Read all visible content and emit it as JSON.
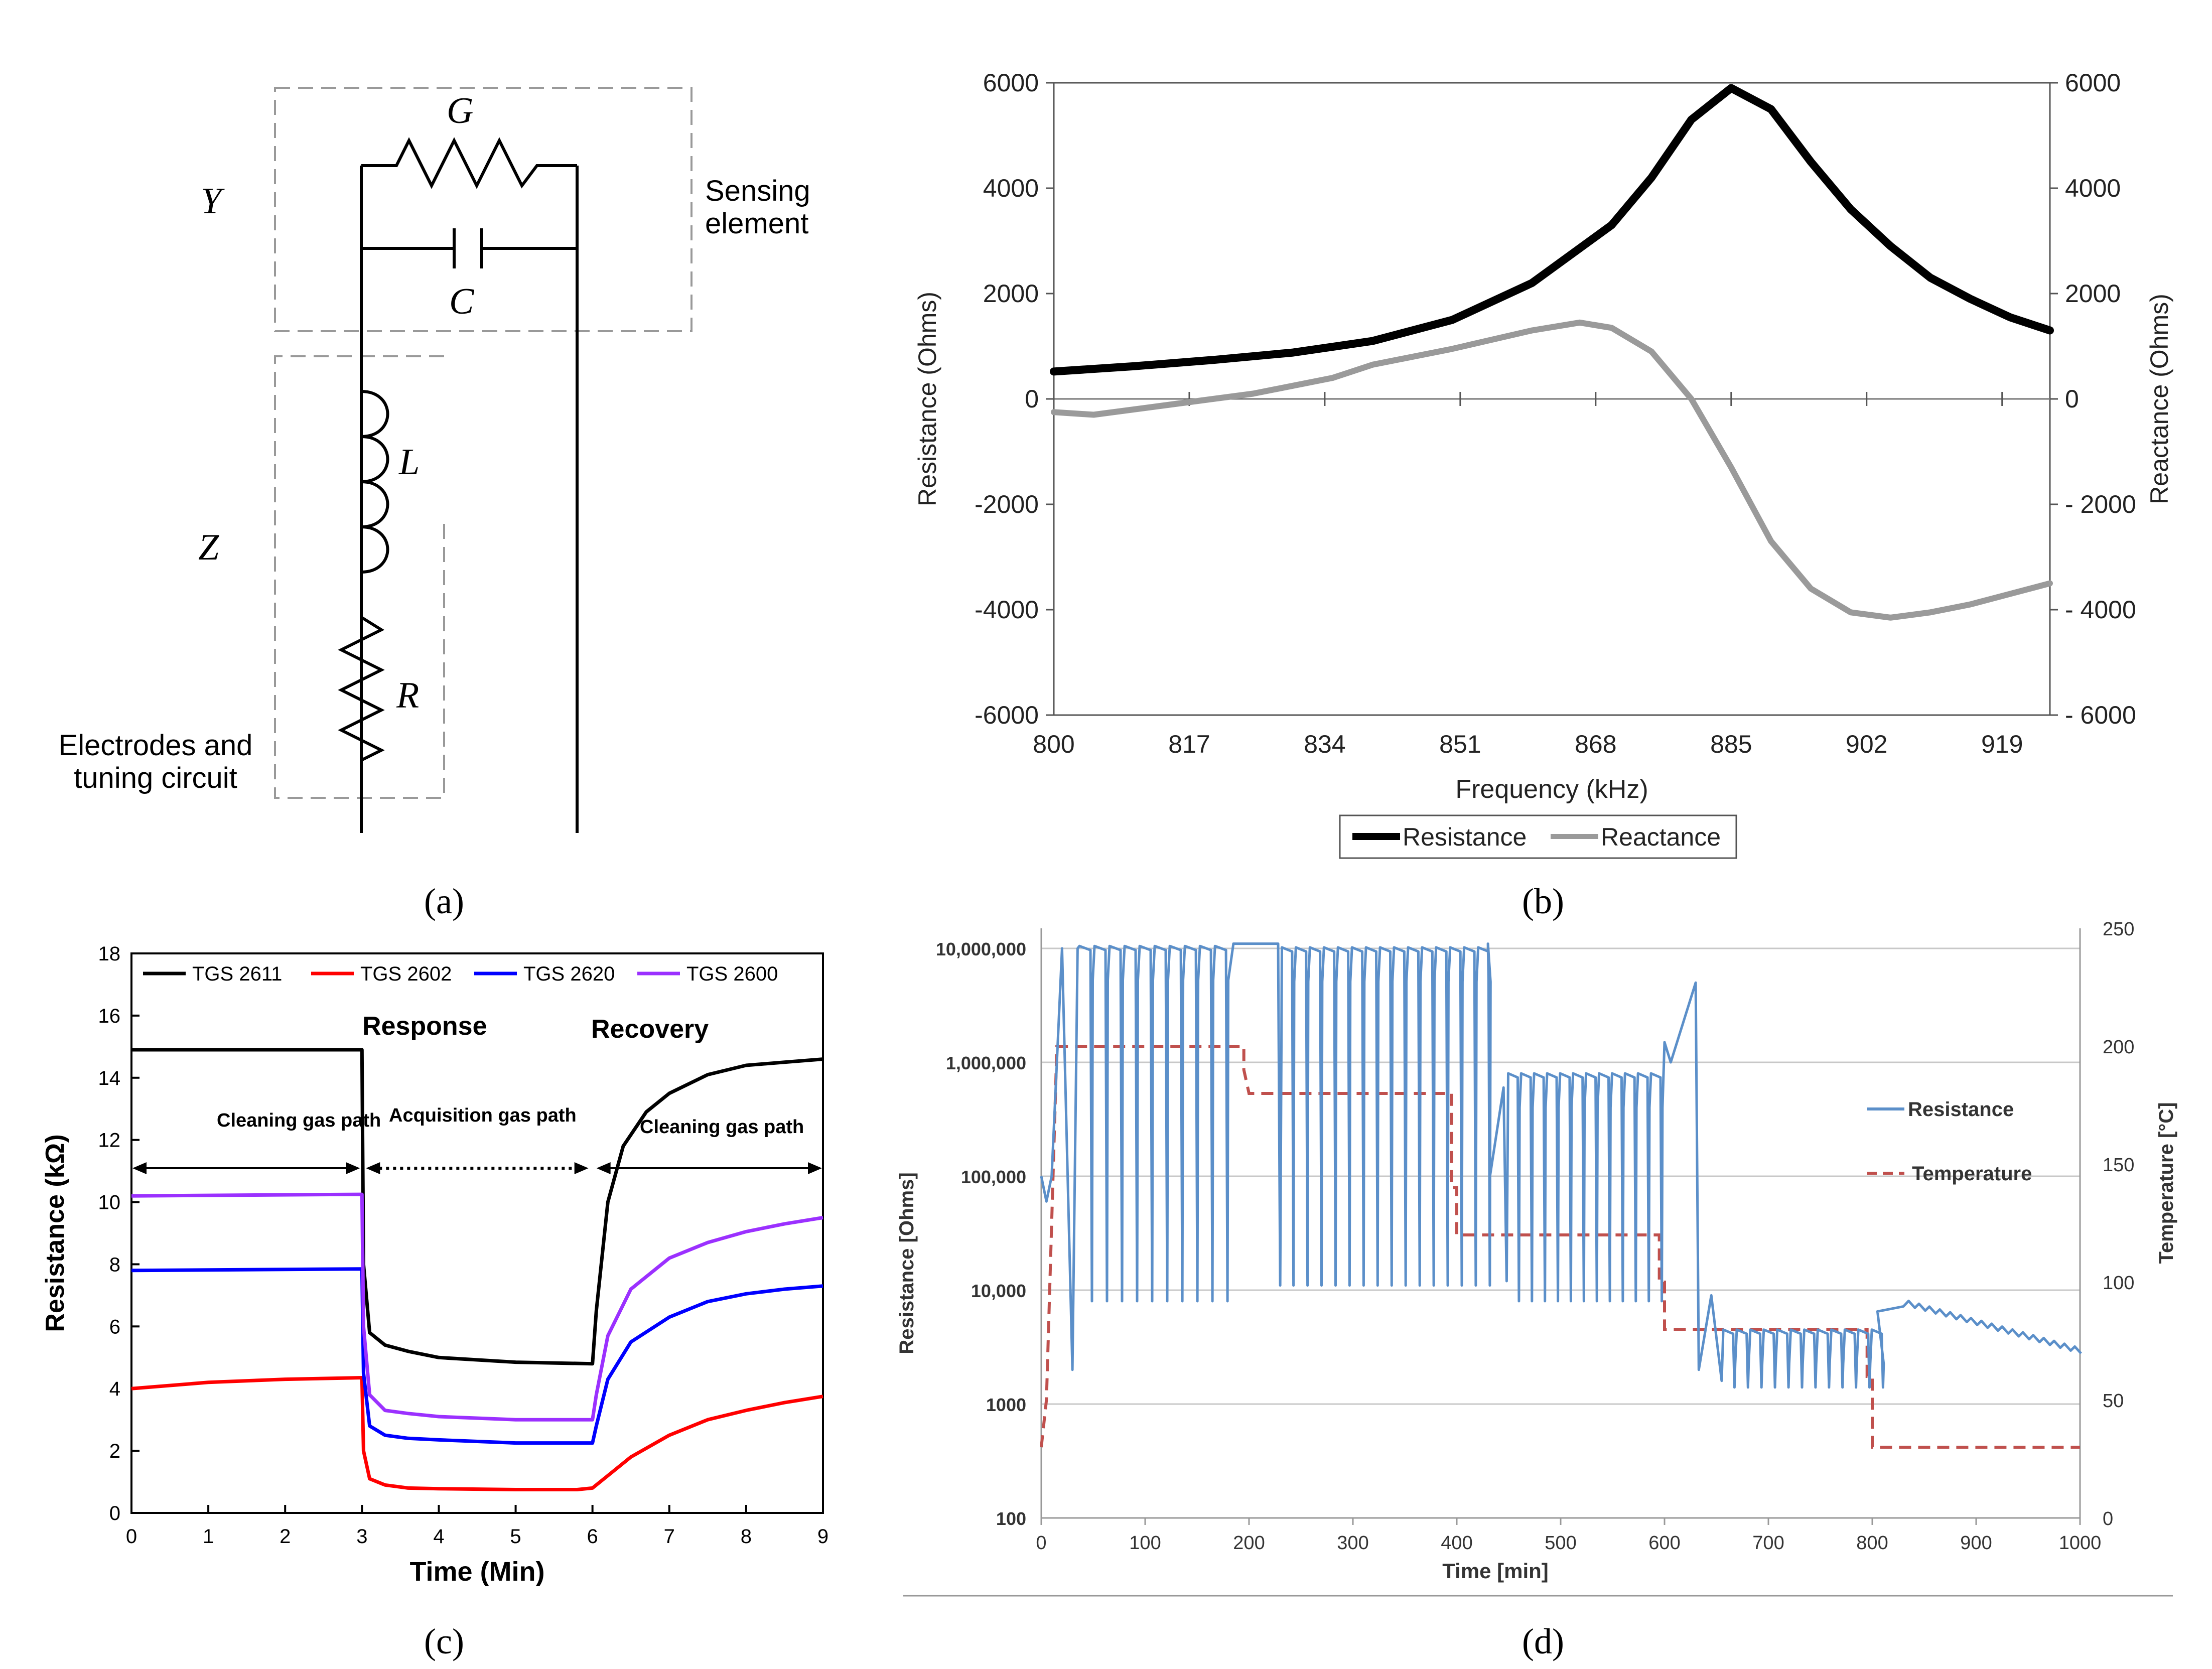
{
  "panel_labels": {
    "a": "(a)",
    "b": "(b)",
    "c": "(c)",
    "d": "(d)"
  },
  "colors": {
    "resistance_b": "#000000",
    "reactance_b": "#9a9a9a",
    "tgs2611": "#000000",
    "tgs2602": "#ff0000",
    "tgs2620": "#0000ff",
    "tgs2600": "#9b30ff",
    "resistance_d": "#5b8fc9",
    "temperature_d": "#c0504d"
  },
  "circuit": {
    "labels": {
      "G": "G",
      "C": "C",
      "L": "L",
      "R": "R",
      "Y": "Y",
      "Z": "Z",
      "sensing_line1": "Sensing",
      "sensing_line2": "element",
      "electrodes_line1": "Electrodes and",
      "electrodes_line2": "tuning circuit"
    }
  },
  "chart_data": [
    {
      "panel": "b",
      "type": "line",
      "xlabel": "Frequency (kHz)",
      "ylabel": "Resistance (Ohms)",
      "y2label": "Reactance (Ohms)",
      "x_ticks": [
        800,
        817,
        834,
        851,
        868,
        885,
        902,
        919
      ],
      "y_ticks": [
        "6000",
        "4000",
        "2000",
        "0",
        "-2000",
        "-4000",
        "-6000"
      ],
      "y2_ticks": [
        "6000",
        "4000",
        "2000",
        "0",
        "- 2000",
        "- 4000",
        "- 6000"
      ],
      "xlim": [
        800,
        925
      ],
      "ylim": [
        -6000,
        6000
      ],
      "legend": [
        "Resistance",
        "Reactance"
      ],
      "legend_position": "bottom-center",
      "series": [
        {
          "name": "Resistance",
          "x": [
            800,
            810,
            820,
            830,
            840,
            850,
            860,
            870,
            875,
            880,
            885,
            890,
            895,
            900,
            905,
            910,
            915,
            920,
            925
          ],
          "y": [
            520,
            620,
            740,
            880,
            1100,
            1500,
            2200,
            3300,
            4200,
            5300,
            5900,
            5500,
            4500,
            3600,
            2900,
            2300,
            1900,
            1550,
            1300
          ]
        },
        {
          "name": "Reactance",
          "x": [
            800,
            805,
            815,
            825,
            835,
            840,
            850,
            860,
            866,
            870,
            875,
            880,
            885,
            890,
            895,
            900,
            905,
            910,
            915,
            920,
            925
          ],
          "y": [
            -250,
            -300,
            -100,
            100,
            400,
            650,
            950,
            1300,
            1450,
            1350,
            900,
            0,
            -1300,
            -2700,
            -3600,
            -4050,
            -4150,
            -4050,
            -3900,
            -3700,
            -3500
          ]
        }
      ]
    },
    {
      "panel": "c",
      "type": "line",
      "xlabel": "Time (Min)",
      "ylabel": "Resistance (kΩ)",
      "x_ticks": [
        "0",
        "1",
        "2",
        "3",
        "4",
        "5",
        "6",
        "7",
        "8",
        "9"
      ],
      "y_ticks": [
        "0",
        "2",
        "4",
        "6",
        "8",
        "10",
        "12",
        "14",
        "16",
        "18"
      ],
      "xlim": [
        0,
        9
      ],
      "ylim": [
        0,
        18
      ],
      "legend": [
        "TGS 2611",
        "TGS 2602",
        "TGS 2620",
        "TGS 2600"
      ],
      "legend_position": "top",
      "annotations": {
        "response": "Response",
        "recovery": "Recovery",
        "cleaning1": "Cleaning gas path",
        "acquisition": "Acquisition gas path",
        "cleaning2": "Cleaning gas path"
      },
      "series": [
        {
          "name": "TGS 2611",
          "x": [
            0,
            3,
            3.02,
            3.1,
            3.3,
            3.6,
            4,
            5,
            6,
            6.05,
            6.2,
            6.4,
            6.7,
            7,
            7.5,
            8,
            8.5,
            9
          ],
          "y": [
            14.9,
            14.9,
            8.0,
            5.8,
            5.4,
            5.2,
            5.0,
            4.85,
            4.8,
            6.5,
            10.0,
            11.8,
            12.9,
            13.5,
            14.1,
            14.4,
            14.5,
            14.6
          ]
        },
        {
          "name": "TGS 2602",
          "x": [
            0,
            1,
            2,
            3,
            3.02,
            3.1,
            3.3,
            3.6,
            4,
            5,
            5.8,
            6,
            6.2,
            6.5,
            7,
            7.5,
            8,
            8.5,
            9
          ],
          "y": [
            4.0,
            4.2,
            4.3,
            4.35,
            2.0,
            1.1,
            0.9,
            0.8,
            0.78,
            0.75,
            0.75,
            0.8,
            1.2,
            1.8,
            2.5,
            3.0,
            3.3,
            3.55,
            3.75
          ]
        },
        {
          "name": "TGS 2620",
          "x": [
            0,
            3,
            3.02,
            3.1,
            3.3,
            3.6,
            4,
            5,
            6,
            6.05,
            6.2,
            6.5,
            7,
            7.5,
            8,
            8.5,
            9
          ],
          "y": [
            7.8,
            7.85,
            4.5,
            2.8,
            2.5,
            2.4,
            2.35,
            2.25,
            2.25,
            2.8,
            4.3,
            5.5,
            6.3,
            6.8,
            7.05,
            7.2,
            7.3
          ]
        },
        {
          "name": "TGS 2600",
          "x": [
            0,
            3,
            3.02,
            3.1,
            3.3,
            3.6,
            4,
            5,
            6,
            6.05,
            6.2,
            6.5,
            7,
            7.5,
            8,
            8.5,
            9
          ],
          "y": [
            10.2,
            10.25,
            6.0,
            3.8,
            3.3,
            3.2,
            3.1,
            3.0,
            3.0,
            3.8,
            5.7,
            7.2,
            8.2,
            8.7,
            9.05,
            9.3,
            9.5
          ]
        }
      ]
    },
    {
      "panel": "d",
      "type": "line",
      "xlabel": "Time [min]",
      "ylabel": "Resistance [Ohms]",
      "y2label": "Temperature [°C]",
      "x_ticks": [
        "0",
        "100",
        "200",
        "300",
        "400",
        "500",
        "600",
        "700",
        "800",
        "900",
        "1000"
      ],
      "y_ticks": [
        "100",
        "1000",
        "10,000",
        "100,000",
        "1,000,000",
        "10,000,000"
      ],
      "y2_ticks": [
        "0",
        "50",
        "100",
        "150",
        "200",
        "250"
      ],
      "xlim": [
        0,
        1000
      ],
      "ylim_log": [
        100,
        15000000
      ],
      "y2lim": [
        0,
        250
      ],
      "grid": true,
      "legend": [
        "Resistance",
        "Temperature"
      ],
      "legend_position": "right",
      "series": [
        {
          "name": "Temperature",
          "x": [
            0,
            5,
            15,
            195,
            195,
            200,
            395,
            395,
            400,
            400,
            405,
            595,
            595,
            600,
            600,
            605,
            795,
            795,
            800,
            800,
            805,
            1000
          ],
          "y": [
            30,
            50,
            200,
            200,
            190,
            180,
            180,
            140,
            140,
            120,
            120,
            120,
            100,
            100,
            80,
            80,
            80,
            60,
            60,
            30,
            30,
            30
          ]
        },
        {
          "name": "Resistance",
          "x": [
            0,
            5,
            10,
            15,
            20
          ],
          "y": [
            100000,
            60000,
            100000,
            1000000,
            10000000
          ],
          "note": "oscillating section: cycles between ~9,000,000 and ~8,000 from 20–180 min, ~10,000 from 230–420 min, ~100,000–1,000,000 / ~8,000 from 440–590 min, ~5,000–2,000 from 630–800 min, then decays from ~7,000 to ~2,700 by 1000 min"
        }
      ]
    }
  ]
}
